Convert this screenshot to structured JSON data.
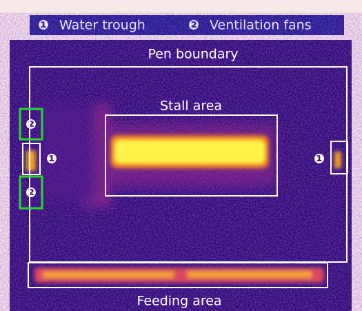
{
  "legend": [
    {
      "marker": "❶",
      "label": "Water trough"
    },
    {
      "marker": "❷",
      "label": "Ventilation fans"
    }
  ],
  "regions": {
    "pen": "Pen boundary",
    "stall": "Stall area",
    "feeding": "Feeding area"
  },
  "markers": {
    "water_left": "❶",
    "water_right": "❶",
    "fan_top": "❷",
    "fan_bottom": "❷"
  }
}
